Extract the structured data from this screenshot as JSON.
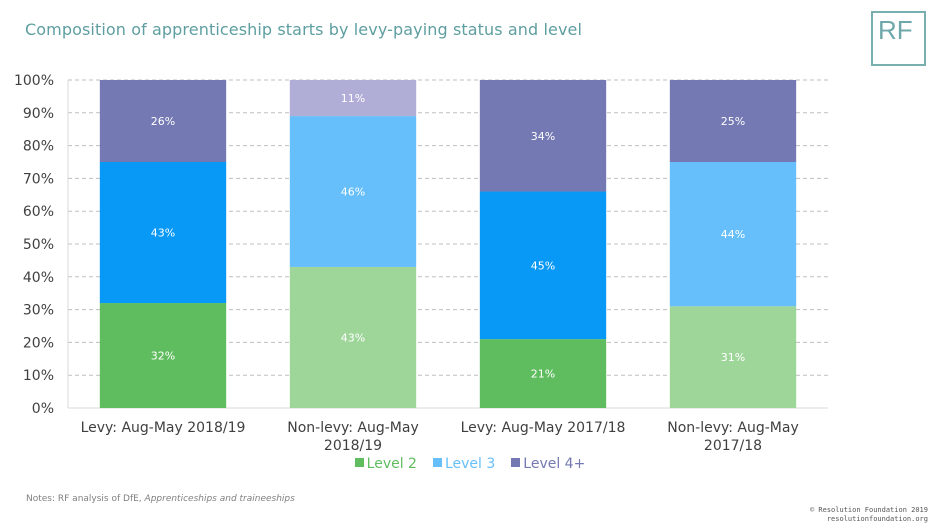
{
  "header": {
    "title": "Composition of apprenticeship starts by levy-paying status and level",
    "logo_text": "RF"
  },
  "chart_data": {
    "type": "bar",
    "stacked": true,
    "title": "Composition of apprenticeship starts by levy-paying status and level",
    "xlabel": "",
    "ylabel": "",
    "ylim": [
      0,
      100
    ],
    "y_ticks": [
      "0%",
      "10%",
      "20%",
      "30%",
      "40%",
      "50%",
      "60%",
      "70%",
      "80%",
      "90%",
      "100%"
    ],
    "grid": true,
    "legend_position": "bottom",
    "categories": [
      [
        "Levy: Aug-May 2018/19"
      ],
      [
        "Non-levy: Aug-May",
        "2018/19"
      ],
      [
        "Levy: Aug-May 2017/18"
      ],
      [
        "Non-levy: Aug-May",
        "2017/18"
      ]
    ],
    "series": [
      {
        "name": "Level 2",
        "values": [
          32,
          43,
          21,
          31
        ],
        "labels": [
          "32%",
          "43%",
          "21%",
          "31%"
        ],
        "colors": [
          "#5FBD5F",
          "#9ED69A",
          "#5FBD5F",
          "#9ED69A"
        ],
        "legend_color": "#5FBD5F"
      },
      {
        "name": "Level 3",
        "values": [
          43,
          46,
          45,
          44
        ],
        "labels": [
          "43%",
          "46%",
          "45%",
          "44%"
        ],
        "colors": [
          "#0898F5",
          "#66BFFA",
          "#0898F5",
          "#66BFFA"
        ],
        "legend_color": "#66BFFA"
      },
      {
        "name": "Level 4+",
        "values": [
          26,
          11,
          34,
          25
        ],
        "labels": [
          "26%",
          "11%",
          "34%",
          "25%"
        ],
        "colors": [
          "#7479B3",
          "#B0AED6",
          "#7479B3",
          "#7479B3"
        ],
        "legend_color": "#7479B3"
      }
    ]
  },
  "footer": {
    "notes_prefix": "Notes: RF analysis of DfE, ",
    "notes_source": "Apprenticeships and traineeships",
    "copyright_line1": "© Resolution Foundation 2019",
    "copyright_line2": "resolutionfoundation.org"
  }
}
